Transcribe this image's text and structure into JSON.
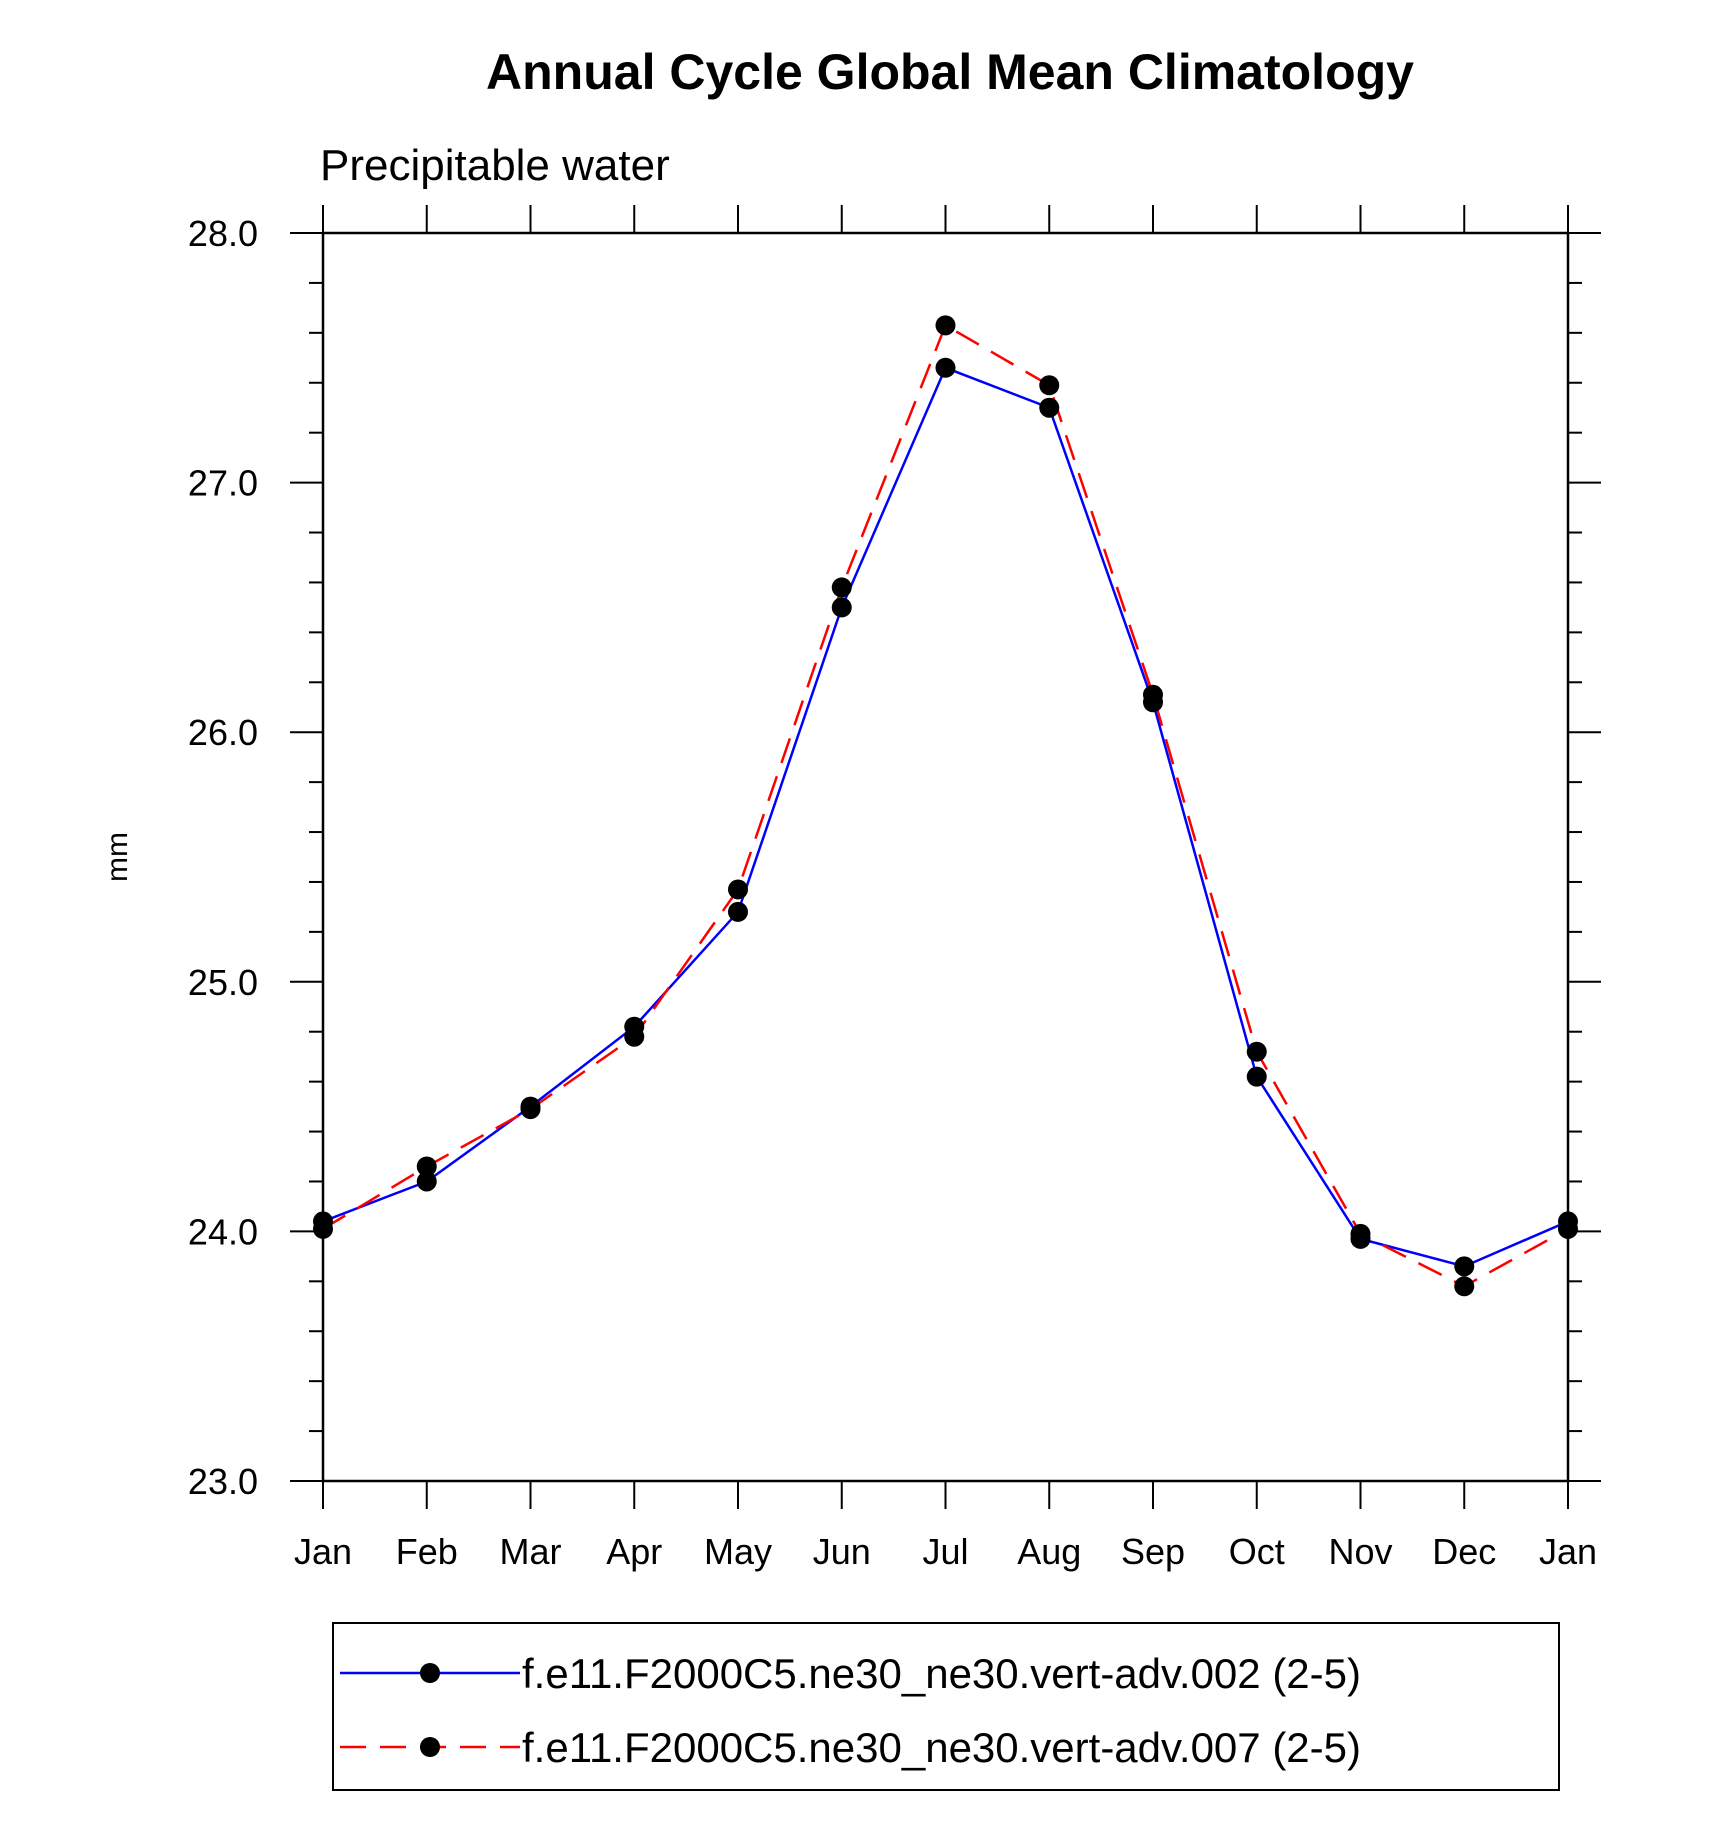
{
  "chart_data": {
    "type": "line",
    "title": "Annual Cycle Global Mean Climatology",
    "subtitle": "Precipitable water",
    "xlabel": "",
    "ylabel": "mm",
    "categories": [
      "Jan",
      "Feb",
      "Mar",
      "Apr",
      "May",
      "Jun",
      "Jul",
      "Aug",
      "Sep",
      "Oct",
      "Nov",
      "Dec",
      "Jan"
    ],
    "ylim": [
      23.0,
      28.0
    ],
    "yticks": [
      "23.0",
      "24.0",
      "25.0",
      "26.0",
      "27.0",
      "28.0"
    ],
    "grid": false,
    "legend_position": "bottom",
    "series": [
      {
        "name": "f.e11.F2000C5.ne30_ne30.vert-adv.002 (2-5)",
        "color": "#0000ff",
        "style": "solid",
        "values": [
          24.04,
          24.2,
          24.5,
          24.82,
          25.28,
          26.5,
          27.46,
          27.3,
          26.12,
          24.62,
          23.97,
          23.86,
          24.04
        ]
      },
      {
        "name": "f.e11.F2000C5.ne30_ne30.vert-adv.007 (2-5)",
        "color": "#ff0000",
        "style": "dashed",
        "values": [
          24.01,
          24.26,
          24.49,
          24.78,
          25.37,
          26.58,
          27.63,
          27.39,
          26.15,
          24.72,
          23.99,
          23.78,
          24.01
        ]
      }
    ]
  }
}
